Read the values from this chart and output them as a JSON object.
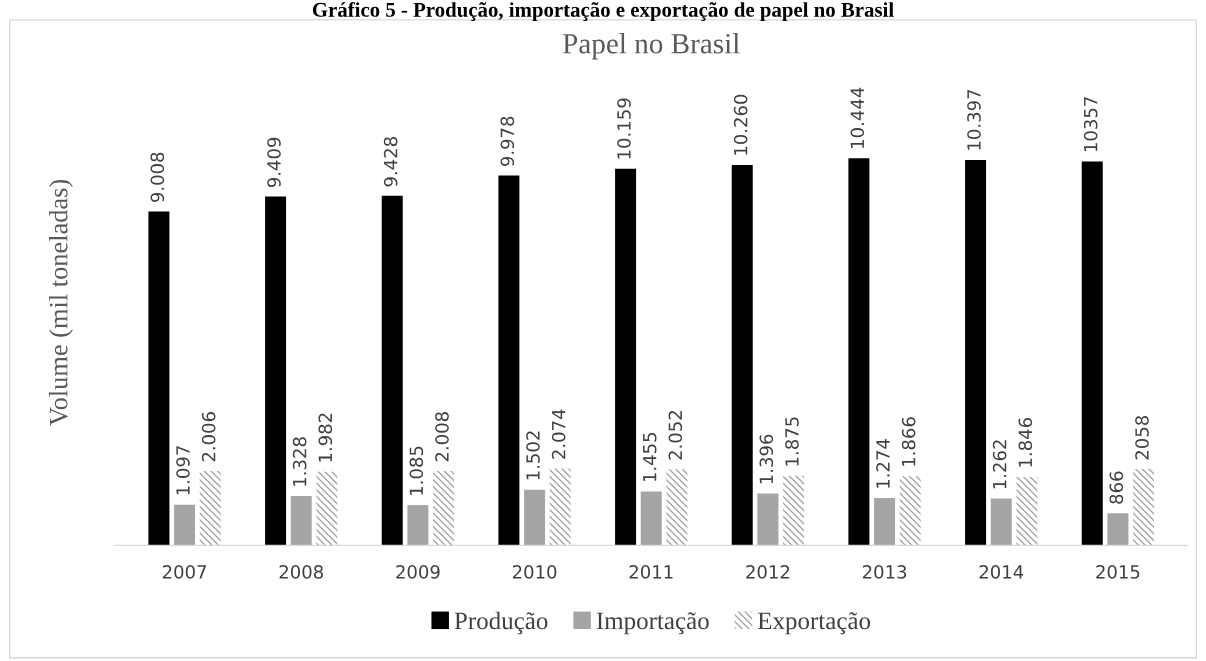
{
  "chart_data": {
    "type": "bar",
    "title": "Papel no Brasil",
    "ylabel": "Volume (mil toneladas)",
    "annotations": [
      "Gráfico 5 - Produção, importação e exportação de papel no Brasil"
    ],
    "categories": [
      "2007",
      "2008",
      "2009",
      "2010",
      "2011",
      "2012",
      "2013",
      "2014",
      "2015"
    ],
    "series": [
      {
        "name": "Produção",
        "color": "#000000",
        "values": [
          9008,
          9409,
          9428,
          9978,
          10159,
          10260,
          10444,
          10397,
          10357
        ],
        "value_labels": [
          "9.008",
          "9.409",
          "9.428",
          "9.978",
          "10.159",
          "10.260",
          "10.444",
          "10.397",
          "10357"
        ]
      },
      {
        "name": "Importação",
        "color": "#a5a5a5",
        "values": [
          1097,
          1328,
          1085,
          1502,
          1455,
          1396,
          1274,
          1262,
          866
        ],
        "value_labels": [
          "1.097",
          "1.328",
          "1.085",
          "1.502",
          "1.455",
          "1.396",
          "1.274",
          "1.262",
          "866"
        ]
      },
      {
        "name": "Exportação",
        "color": "#a5a5a5",
        "values": [
          2006,
          1982,
          2008,
          2074,
          2052,
          1875,
          1866,
          1846,
          2058
        ],
        "value_labels": [
          "2.006",
          "1.982",
          "2.008",
          "2.074",
          "2.052",
          "1.875",
          "1.866",
          "1.846",
          "2058"
        ]
      }
    ],
    "legend": "bottom",
    "grid": false
  }
}
